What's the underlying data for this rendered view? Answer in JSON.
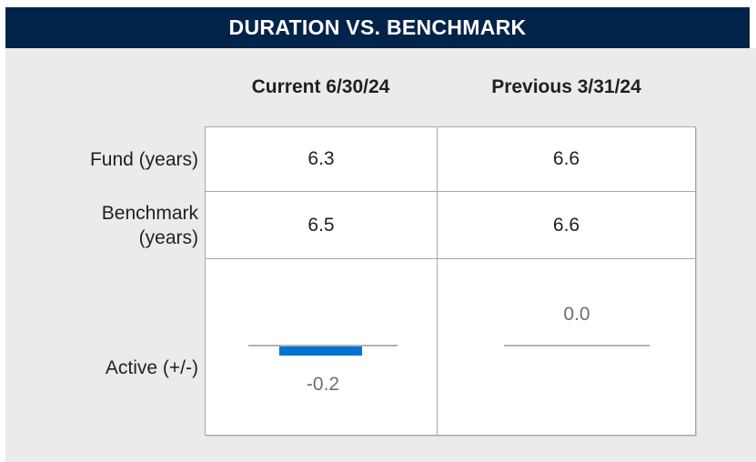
{
  "header": {
    "title": "DURATION VS. BENCHMARK",
    "bg_color": "#02234a",
    "text_color": "#ffffff"
  },
  "table": {
    "column_headers": [
      "Current 6/30/24",
      "Previous 3/31/24"
    ],
    "row_labels": {
      "fund": "Fund (years)",
      "benchmark_line1": "Benchmark",
      "benchmark_line2": "(years)",
      "active": "Active (+/-)"
    },
    "values": {
      "fund_current": "6.3",
      "fund_previous": "6.6",
      "benchmark_current": "6.5",
      "benchmark_previous": "6.6",
      "active_current": "-0.2",
      "active_previous": "0.0"
    }
  },
  "colors": {
    "panel_background": "#ebebeb",
    "cell_border": "#a8a8a8",
    "bar_blue": "#0073cf",
    "baseline_gray": "#b1b1b1",
    "chart_label_gray": "#6d6e71",
    "text_dark": "#231f20"
  },
  "chart_data": [
    {
      "type": "table",
      "title": "DURATION VS. BENCHMARK",
      "columns": [
        "Current 6/30/24",
        "Previous 3/31/24"
      ],
      "rows": [
        {
          "label": "Fund (years)",
          "values": [
            6.3,
            6.6
          ]
        },
        {
          "label": "Benchmark (years)",
          "values": [
            6.5,
            6.6
          ]
        },
        {
          "label": "Active (+/-)",
          "values": [
            -0.2,
            0.0
          ]
        }
      ]
    },
    {
      "type": "bar",
      "title": "Active (+/-)",
      "categories": [
        "Current 6/30/24",
        "Previous 3/31/24"
      ],
      "values": [
        -0.2,
        0.0
      ],
      "baseline": 0,
      "bar_color": "#0073cf",
      "baseline_color": "#b1b1b1",
      "label_color": "#6d6e71",
      "orientation": "vertical",
      "legend": "off",
      "grid": "off"
    }
  ]
}
